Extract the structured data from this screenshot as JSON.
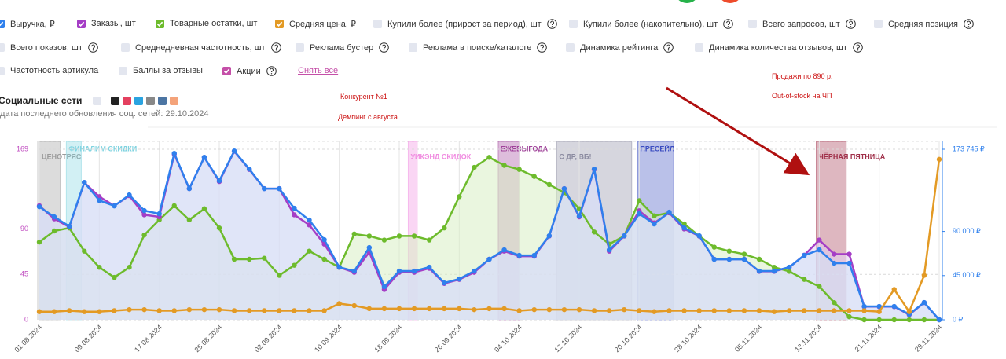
{
  "filters": [
    {
      "label": "Купили более (прирост за период), шт",
      "checked": false,
      "help": true
    },
    {
      "label": "Купили более (накопительно), шт",
      "checked": false,
      "help": true
    },
    {
      "label": "Всего запросов, шт",
      "checked": false,
      "help": true
    },
    {
      "label": "Средняя позиция",
      "checked": false,
      "help": true
    },
    {
      "label": "Всего показов, шт",
      "checked": false,
      "help": true
    },
    {
      "label": "Среднедневная частотность, шт",
      "checked": false,
      "help": true
    },
    {
      "label": "Реклама бустер",
      "checked": false,
      "help": true
    },
    {
      "label": "Реклама в поиске/каталоге",
      "checked": false,
      "help": true
    },
    {
      "label": "Динамика рейтинга",
      "checked": false,
      "help": true
    },
    {
      "label": "Динамика количества отзывов, шт",
      "checked": false,
      "help": true
    },
    {
      "label": "Частотность артикула",
      "checked": false,
      "help": false
    },
    {
      "label": "Баллы за отзывы",
      "checked": false,
      "help": false
    },
    {
      "label": "Акции",
      "checked": true,
      "color": "#c54fa8",
      "help": true
    }
  ],
  "reset": "Снять все",
  "social": {
    "title": "Социальные сети",
    "updated": "дата последнего обновления соц. сетей: 29.10.2024"
  },
  "annotations": [
    "Конкурент №1",
    "Демпинг с августа",
    "Продажи по 890 р.",
    "Out-of-stock на ЧП"
  ],
  "chart_data": {
    "type": "line",
    "categories": [
      "01.08.2024",
      null,
      null,
      null,
      "09.08.2024",
      null,
      null,
      null,
      "17.08.2024",
      null,
      null,
      null,
      "25.08.2024",
      null,
      null,
      null,
      "02.09.2024",
      null,
      null,
      null,
      "10.09.2024",
      null,
      null,
      null,
      "18.09.2024",
      null,
      null,
      null,
      "26.09.2024",
      null,
      null,
      null,
      "04.10.2024",
      null,
      null,
      null,
      "12.10.2024",
      null,
      null,
      null,
      "20.10.2024",
      null,
      null,
      null,
      "28.10.2024",
      null,
      null,
      null,
      "05.11.2024",
      null,
      null,
      null,
      "13.11.2024",
      null,
      null,
      null,
      "21.11.2024",
      null,
      null,
      null,
      "29.11.2024"
    ],
    "series": [
      {
        "name": "Товарные остатки, шт",
        "color": "#6dbb2c",
        "fill": "#d9efc4",
        "values": [
          77,
          88,
          91,
          68,
          52,
          42,
          52,
          84,
          99,
          113,
          99,
          110,
          91,
          60,
          60,
          61,
          44,
          54,
          68,
          60,
          52,
          85,
          83,
          79,
          83,
          83,
          79,
          91,
          122,
          151,
          161,
          153,
          149,
          142,
          134,
          126,
          110,
          87,
          75,
          83,
          118,
          103,
          106,
          95,
          83,
          72,
          68,
          65,
          60,
          52,
          48,
          40,
          33,
          17,
          3,
          0,
          0,
          0,
          0,
          0,
          0
        ]
      },
      {
        "name": "Заказы, шт",
        "color": "#a53ec6",
        "fill": "#e4d2f2",
        "values": [
          113,
          100,
          92,
          136,
          122,
          113,
          123,
          104,
          102,
          164,
          130,
          161,
          137,
          167,
          149,
          130,
          130,
          104,
          94,
          75,
          52,
          47,
          67,
          30,
          47,
          47,
          51,
          36,
          40,
          47,
          60,
          68,
          63,
          63,
          83,
          130,
          102,
          149,
          68,
          83,
          108,
          96,
          106,
          90,
          83,
          60,
          60,
          60,
          48,
          48,
          52,
          64,
          79,
          65,
          65,
          13,
          13,
          13,
          5,
          17,
          0
        ]
      },
      {
        "name": "Выручка, ₽",
        "color": "#2f80ed",
        "fill": "#d3e3f8",
        "axis": "y2",
        "values": [
          115200,
          104800,
          95200,
          140000,
          121600,
          116000,
          127200,
          111200,
          108000,
          169600,
          133600,
          165600,
          141600,
          172000,
          153600,
          133600,
          133600,
          113600,
          101600,
          81600,
          53600,
          49600,
          73600,
          33600,
          49600,
          49600,
          53600,
          37600,
          41600,
          49600,
          61600,
          71200,
          65600,
          65600,
          85600,
          133600,
          105600,
          153600,
          71200,
          85600,
          108000,
          97600,
          109600,
          93600,
          85600,
          61600,
          61600,
          61600,
          49600,
          49600,
          53600,
          65600,
          71200,
          57600,
          57600,
          13600,
          13600,
          13600,
          5600,
          17600,
          0
        ]
      },
      {
        "name": "Средняя цена, ₽",
        "color": "#e39a24",
        "values": [
          8,
          8,
          9,
          8,
          8,
          9,
          10,
          10,
          9,
          9,
          10,
          10,
          10,
          9,
          9,
          9,
          9,
          9,
          9,
          9,
          16,
          14,
          11,
          11,
          11,
          11,
          11,
          11,
          11,
          10,
          11,
          11,
          9,
          10,
          10,
          10,
          10,
          9,
          9,
          10,
          9,
          8,
          9,
          9,
          9,
          9,
          9,
          9,
          9,
          8,
          9,
          9,
          9,
          9,
          9,
          9,
          8,
          30,
          8,
          44,
          159
        ]
      }
    ],
    "ylim": [
      0,
      169
    ],
    "yticks": [
      0,
      45,
      90,
      169
    ],
    "y2lim": [
      0,
      173745
    ],
    "y2ticks": [
      {
        "value": 0,
        "label": "0 ₽"
      },
      {
        "value": 45000,
        "label": "45 000 ₽"
      },
      {
        "value": 90000,
        "label": "90 000 ₽"
      },
      {
        "value": 173745,
        "label": "173 745 ₽"
      }
    ],
    "grid": true,
    "markers": true,
    "promos": [
      {
        "label": "ЦЕНОТРЯС",
        "color": "#9a9a9a",
        "start": 0,
        "end": 1.4
      },
      {
        "label": "ФИНАЛИМ СКИДКИ",
        "color": "#7fd3e0",
        "start": 1.8,
        "end": 2.8
      },
      {
        "label": "УИКЭНД СКИДОК",
        "color": "#f08ae0",
        "start": 24.6,
        "end": 25.2
      },
      {
        "label": "ЕЖЕВЫГОДА",
        "color": "#a0439a",
        "start": 30.6,
        "end": 32
      },
      {
        "label": "С ДР, ВБ!",
        "color": "#8a8aa0",
        "start": 34.5,
        "end": 39.5
      },
      {
        "label": "ПРЕСЕЙЛ",
        "color": "#3a4cc0",
        "start": 39.9,
        "end": 42.3
      },
      {
        "label": "ЧЁРНАЯ ПЯТНИЦА",
        "color": "#a0304a",
        "start": 51.8,
        "end": 53.8
      }
    ]
  }
}
